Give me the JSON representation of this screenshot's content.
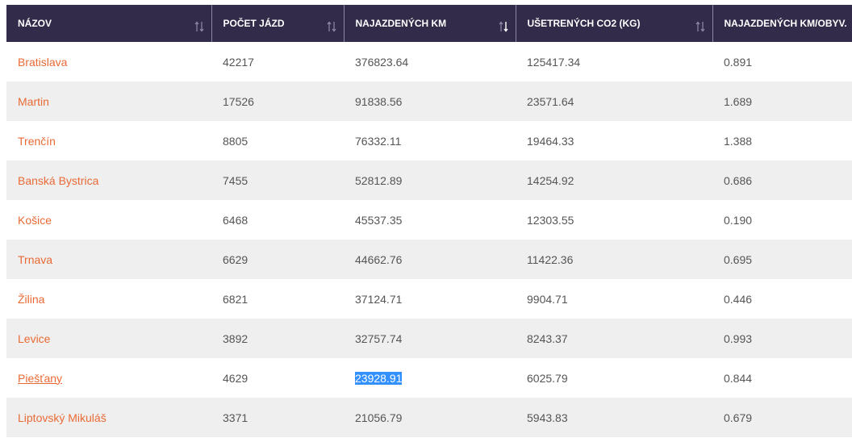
{
  "columns": [
    {
      "label": "NÁZOV",
      "sort": "none"
    },
    {
      "label": "POČET JÁZD",
      "sort": "none"
    },
    {
      "label": "NAJAZDENÝCH KM",
      "sort": "desc"
    },
    {
      "label": "UŠETRENÝCH CO2 (KG)",
      "sort": "none"
    },
    {
      "label": "NAJAZDENÝCH KM/OBYV.",
      "sort": null
    }
  ],
  "rows": [
    {
      "name": "Bratislava",
      "trips": "42217",
      "km": "376823.64",
      "co2": "125417.34",
      "km_per_capita": "0.891"
    },
    {
      "name": "Martin",
      "trips": "17526",
      "km": "91838.56",
      "co2": "23571.64",
      "km_per_capita": "1.689"
    },
    {
      "name": "Trenčín",
      "trips": "8805",
      "km": "76332.11",
      "co2": "19464.33",
      "km_per_capita": "1.388"
    },
    {
      "name": "Banská Bystrica",
      "trips": "7455",
      "km": "52812.89",
      "co2": "14254.92",
      "km_per_capita": "0.686"
    },
    {
      "name": "Košice",
      "trips": "6468",
      "km": "45537.35",
      "co2": "12303.55",
      "km_per_capita": "0.190"
    },
    {
      "name": "Trnava",
      "trips": "6629",
      "km": "44662.76",
      "co2": "11422.36",
      "km_per_capita": "0.695"
    },
    {
      "name": "Žilina",
      "trips": "6821",
      "km": "37124.71",
      "co2": "9904.71",
      "km_per_capita": "0.446"
    },
    {
      "name": "Levice",
      "trips": "3892",
      "km": "32757.74",
      "co2": "8243.37",
      "km_per_capita": "0.993"
    },
    {
      "name": "Piešťany",
      "trips": "4629",
      "km": "23928.91",
      "co2": "6025.79",
      "km_per_capita": "0.844"
    },
    {
      "name": "Liptovský Mikuláš",
      "trips": "3371",
      "km": "21056.79",
      "co2": "5943.83",
      "km_per_capita": "0.679"
    }
  ],
  "colors": {
    "header_bg": "#322b4a",
    "link": "#e96a35",
    "text": "#555555",
    "stripe": "#efefef",
    "selection": "#3390ff"
  }
}
